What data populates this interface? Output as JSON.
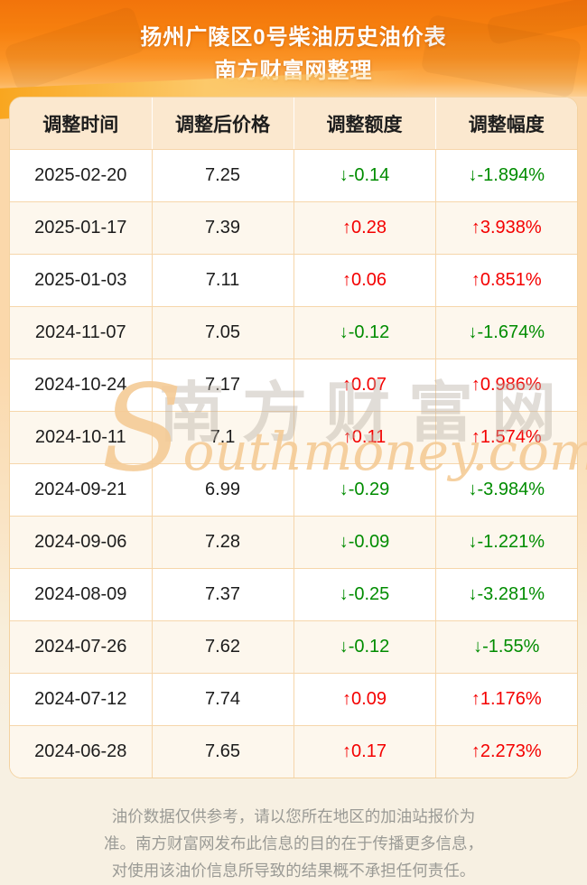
{
  "header": {
    "title_line1": "扬州广陵区0号柴油历史油价表",
    "title_line2": "南方财富网整理"
  },
  "table": {
    "columns": [
      "调整时间",
      "调整后价格",
      "调整额度",
      "调整幅度"
    ],
    "rows": [
      {
        "date": "2025-02-20",
        "price": "7.25",
        "change": "↓-0.14",
        "pct": "↓-1.894%",
        "direction": "down"
      },
      {
        "date": "2025-01-17",
        "price": "7.39",
        "change": "↑0.28",
        "pct": "↑3.938%",
        "direction": "up"
      },
      {
        "date": "2025-01-03",
        "price": "7.11",
        "change": "↑0.06",
        "pct": "↑0.851%",
        "direction": "up"
      },
      {
        "date": "2024-11-07",
        "price": "7.05",
        "change": "↓-0.12",
        "pct": "↓-1.674%",
        "direction": "down"
      },
      {
        "date": "2024-10-24",
        "price": "7.17",
        "change": "↑0.07",
        "pct": "↑0.986%",
        "direction": "up"
      },
      {
        "date": "2024-10-11",
        "price": "7.1",
        "change": "↑0.11",
        "pct": "↑1.574%",
        "direction": "up"
      },
      {
        "date": "2024-09-21",
        "price": "6.99",
        "change": "↓-0.29",
        "pct": "↓-3.984%",
        "direction": "down"
      },
      {
        "date": "2024-09-06",
        "price": "7.28",
        "change": "↓-0.09",
        "pct": "↓-1.221%",
        "direction": "down"
      },
      {
        "date": "2024-08-09",
        "price": "7.37",
        "change": "↓-0.25",
        "pct": "↓-3.281%",
        "direction": "down"
      },
      {
        "date": "2024-07-26",
        "price": "7.62",
        "change": "↓-0.12",
        "pct": "↓-1.55%",
        "direction": "down"
      },
      {
        "date": "2024-07-12",
        "price": "7.74",
        "change": "↑0.09",
        "pct": "↑1.176%",
        "direction": "up"
      },
      {
        "date": "2024-06-28",
        "price": "7.65",
        "change": "↑0.17",
        "pct": "↑2.273%",
        "direction": "up"
      }
    ]
  },
  "watermark": {
    "cn": "南方财富网",
    "en": "Southmoney.com"
  },
  "footer": {
    "lines": [
      "油价数据仅供参考，请以您所在地区的加油站报价为",
      "准。南方财富网发布此信息的目的在于传播更多信息，",
      "对使用该油价信息所导致的结果概不承担任何责任。"
    ]
  },
  "colors": {
    "up_red": "#f40000",
    "down_green": "#008c00",
    "header_orange": "#f2740b",
    "table_header_bg": "#fbe8cf",
    "alt_row_bg": "#fdf7ed",
    "border_orange": "#f6d6ab"
  }
}
